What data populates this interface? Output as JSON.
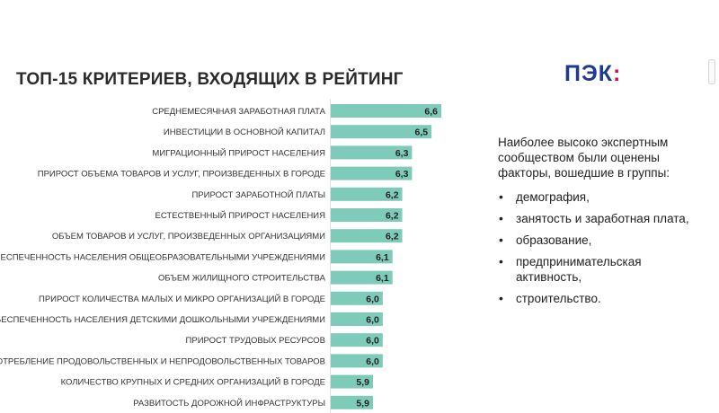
{
  "title": "ТОП-15 КРИТЕРИЕВ, ВХОДЯЩИХ В РЕЙТИНГ",
  "logo": {
    "text": "ПЭК",
    "colon": ":"
  },
  "colors": {
    "bar": "#7ecbba",
    "logo_blue": "#1f3b8f",
    "logo_pink": "#e5005a"
  },
  "side_panel": {
    "intro": "Наиболее высоко экспертным сообществом были оценены факторы, вошедшие в группы:",
    "bullet_icon": "bullet-dot",
    "bullets": [
      "демография,",
      "занятость и заработная плата,",
      "образование,",
      "предпринимательская активность,",
      "строительство."
    ]
  },
  "chart_data": {
    "type": "bar",
    "orientation": "horizontal",
    "title": "ТОП-15 КРИТЕРИЕВ, ВХОДЯЩИХ В РЕЙТИНГ",
    "xlabel": "",
    "ylabel": "",
    "grid": false,
    "categories": [
      "СРЕДНЕМЕСЯЧНАЯ ЗАРАБОТНАЯ ПЛАТА",
      "ИНВЕСТИЦИИ В ОСНОВНОЙ КАПИТАЛ",
      "МИГРАЦИОННЫЙ ПРИРОСТ НАСЕЛЕНИЯ",
      "ПРИРОСТ ОБЪЕМА ТОВАРОВ И УСЛУГ, ПРОИЗВЕДЕННЫХ В ГОРОДЕ",
      "ПРИРОСТ ЗАРАБОТНОЙ ПЛАТЫ",
      "ЕСТЕСТВЕННЫЙ ПРИРОСТ НАСЕЛЕНИЯ",
      "ОБЪЕМ ТОВАРОВ И УСЛУГ, ПРОИЗВЕДЕННЫХ ОРГАНИЗАЦИЯМИ",
      "ОБЕСПЕЧЕННОСТЬ НАСЕЛЕНИЯ ОБЩЕОБРАЗОВАТЕЛЬНЫМИ УЧРЕЖДЕНИЯМИ",
      "ОБЪЕМ ЖИЛИЩНОГО СТРОИТЕЛЬСТВА",
      "ПРИРОСТ КОЛИЧЕСТВА МАЛЫХ И МИКРО ОРГАНИЗАЦИЙ В ГОРОДЕ",
      "ОБЕСПЕЧЕННОСТЬ НАСЕЛЕНИЯ ДЕТСКИМИ ДОШКОЛЬНЫМИ УЧРЕЖДЕНИЯМИ",
      "ПРИРОСТ ТРУДОВЫХ РЕСУРСОВ",
      "ПОТРЕБЛЕНИЕ ПРОДОВОЛЬСТВЕННЫХ И НЕПРОДОВОЛЬСТВЕННЫХ ТОВАРОВ",
      "КОЛИЧЕСТВО КРУПНЫХ И СРЕДНИХ ОРГАНИЗАЦИЙ В ГОРОДЕ",
      "РАЗВИТОСТЬ ДОРОЖНОЙ ИНФРАСТРУКТУРЫ"
    ],
    "values": [
      6.6,
      6.5,
      6.3,
      6.3,
      6.2,
      6.2,
      6.2,
      6.1,
      6.1,
      6.0,
      6.0,
      6.0,
      6.0,
      5.9,
      5.9
    ],
    "value_labels": [
      "6,6",
      "6,5",
      "6,3",
      "6,3",
      "6,2",
      "6,2",
      "6,2",
      "6,1",
      "6,1",
      "6,0",
      "6,0",
      "6,0",
      "6,0",
      "5,9",
      "5,9"
    ]
  }
}
